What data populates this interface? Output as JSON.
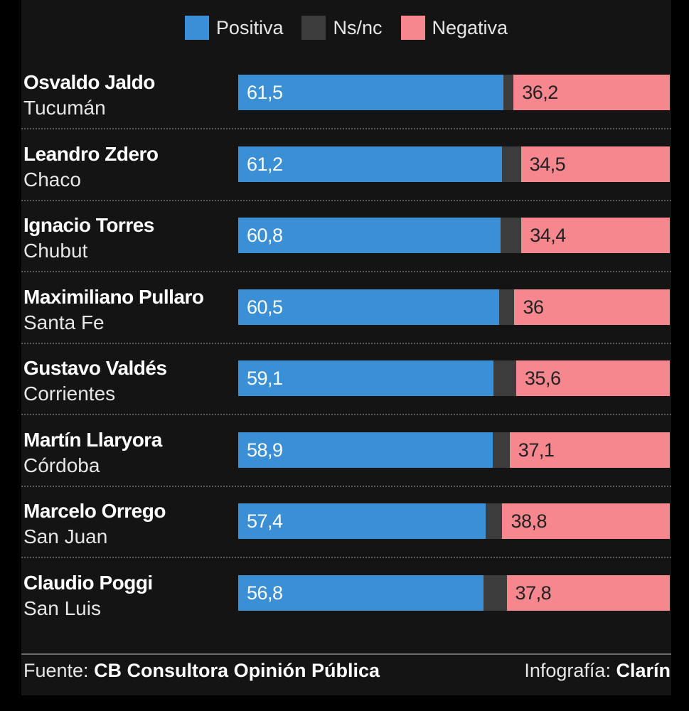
{
  "chart_data": {
    "type": "bar",
    "stacked": true,
    "orientation": "horizontal",
    "legend_position": "top",
    "legend": [
      "Positiva",
      "Ns/nc",
      "Negativa"
    ],
    "colors": {
      "Positiva": "#3a8fd5",
      "Ns/nc": "#3c3c3c",
      "Negativa": "#f7878e"
    },
    "categories": [
      {
        "name": "Osvaldo Jaldo",
        "province": "Tucumán"
      },
      {
        "name": "Leandro Zdero",
        "province": "Chaco"
      },
      {
        "name": "Ignacio Torres",
        "province": "Chubut"
      },
      {
        "name": "Maximiliano Pullaro",
        "province": "Santa Fe"
      },
      {
        "name": "Gustavo Valdés",
        "province": "Corrientes"
      },
      {
        "name": "Martín Llaryora",
        "province": "Córdoba"
      },
      {
        "name": "Marcelo Orrego",
        "province": "San Juan"
      },
      {
        "name": "Claudio Poggi",
        "province": "San Luis"
      }
    ],
    "series": [
      {
        "name": "Positiva",
        "values": [
          61.5,
          61.2,
          60.8,
          60.5,
          59.1,
          58.9,
          57.4,
          56.8
        ],
        "labels": [
          "61,5",
          "61,2",
          "60,8",
          "60,5",
          "59,1",
          "58,9",
          "57,4",
          "56,8"
        ]
      },
      {
        "name": "Ns/nc",
        "values": [
          2.3,
          4.3,
          4.8,
          3.5,
          5.3,
          4.0,
          3.8,
          5.4
        ]
      },
      {
        "name": "Negativa",
        "values": [
          36.2,
          34.5,
          34.4,
          36,
          35.6,
          37.1,
          38.8,
          37.8
        ],
        "labels": [
          "36,2",
          "34,5",
          "34,4",
          "36",
          "35,6",
          "37,1",
          "38,8",
          "37,8"
        ]
      }
    ],
    "xlim": [
      0,
      100
    ]
  },
  "footer": {
    "source_prefix": "Fuente: ",
    "source_name": "CB Consultora Opinión Pública",
    "credit_prefix": "Infografía: ",
    "credit_name": "Clarín"
  }
}
